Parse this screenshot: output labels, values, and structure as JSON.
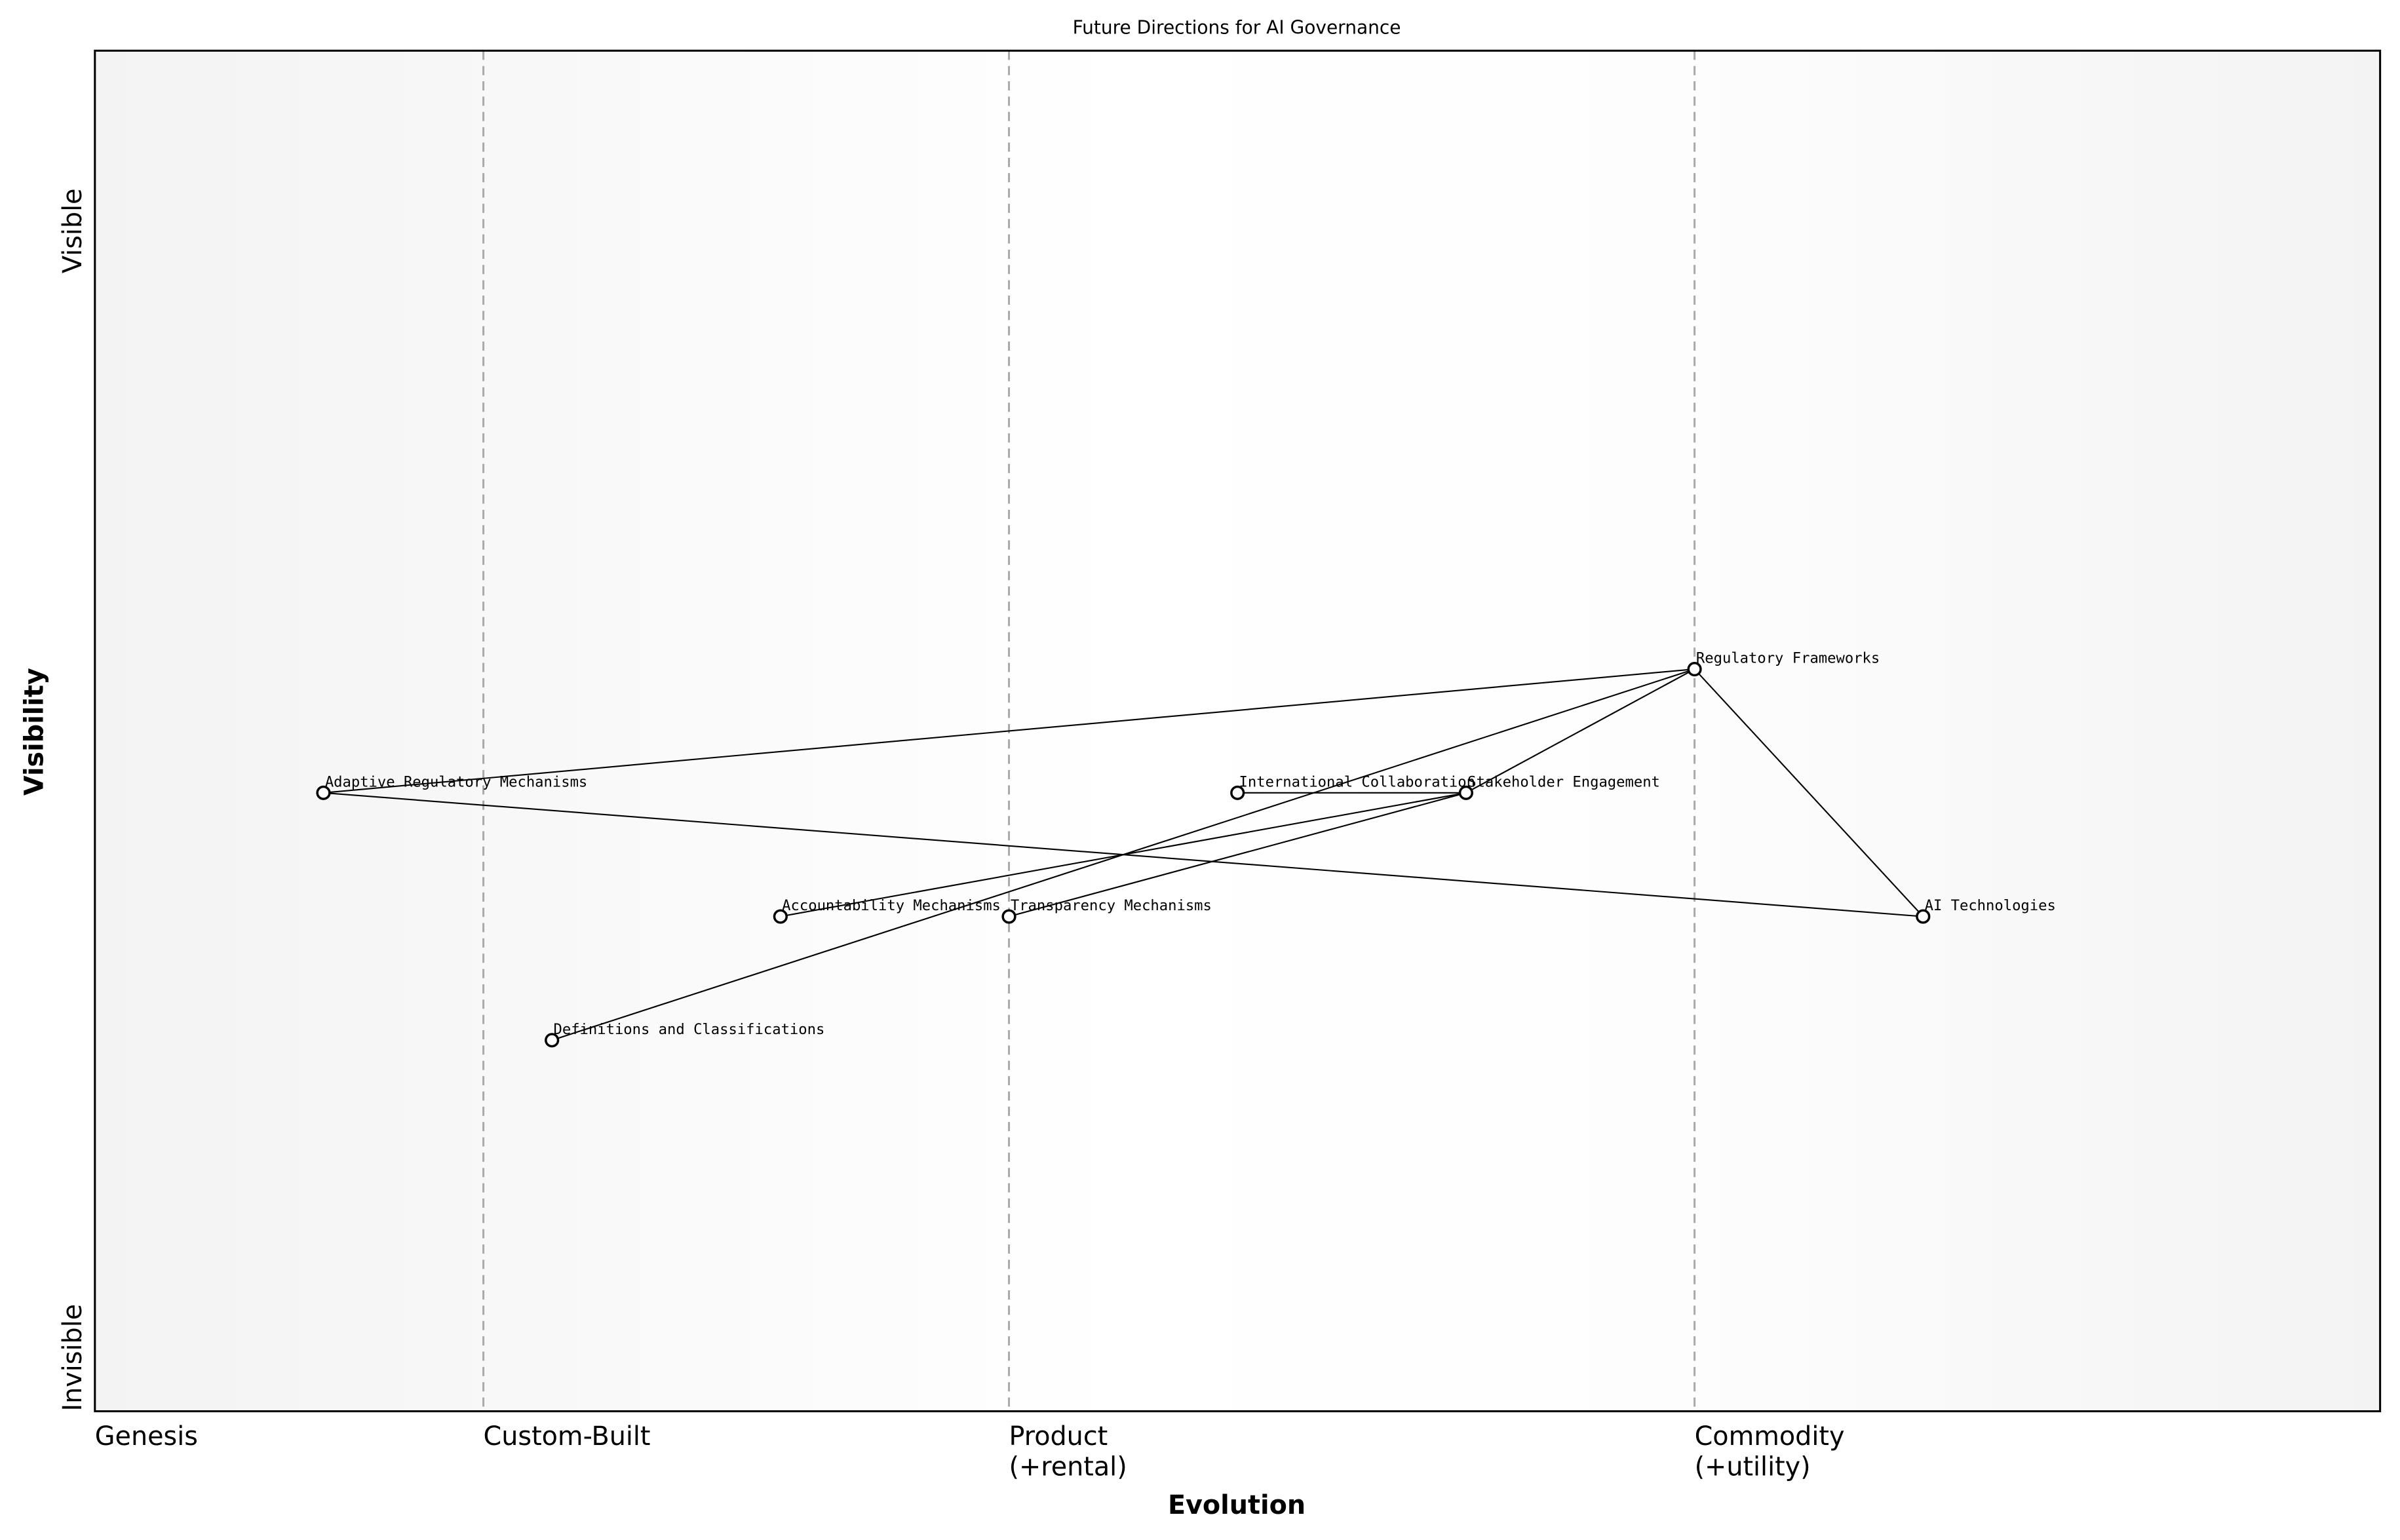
{
  "chart_data": {
    "type": "wardley",
    "title": "Future Directions for AI Governance",
    "xlabel": "Evolution",
    "ylabel": "Visibility",
    "xlim": [
      0,
      1
    ],
    "ylim": [
      0,
      1.1
    ],
    "xticks": [
      {
        "value": 0,
        "label": "Genesis"
      },
      {
        "value": 0.17,
        "label": "Custom-Built"
      },
      {
        "value": 0.4,
        "label": "Product\n(+rental)"
      },
      {
        "value": 0.7,
        "label": "Commodity\n(+utility)"
      }
    ],
    "yticks": [
      {
        "value": 0,
        "label": "Invisible"
      },
      {
        "value": 0.92,
        "label": "Visible"
      }
    ],
    "nodes": [
      {
        "name": "Regulatory Frameworks",
        "x": 0.7,
        "y": 0.6
      },
      {
        "name": "Adaptive Regulatory Mechanisms",
        "x": 0.1,
        "y": 0.5
      },
      {
        "name": "International Collaboration",
        "x": 0.5,
        "y": 0.5
      },
      {
        "name": "Stakeholder Engagement",
        "x": 0.6,
        "y": 0.5
      },
      {
        "name": "Accountability Mechanisms",
        "x": 0.3,
        "y": 0.4
      },
      {
        "name": "Transparency Mechanisms",
        "x": 0.4,
        "y": 0.4
      },
      {
        "name": "AI Technologies",
        "x": 0.8,
        "y": 0.4
      },
      {
        "name": "Definitions and Classifications",
        "x": 0.2,
        "y": 0.3
      }
    ],
    "links": [
      [
        1,
        0
      ],
      [
        1,
        6
      ],
      [
        0,
        6
      ],
      [
        0,
        3
      ],
      [
        0,
        7
      ],
      [
        3,
        2
      ],
      [
        3,
        4
      ],
      [
        3,
        5
      ]
    ]
  }
}
